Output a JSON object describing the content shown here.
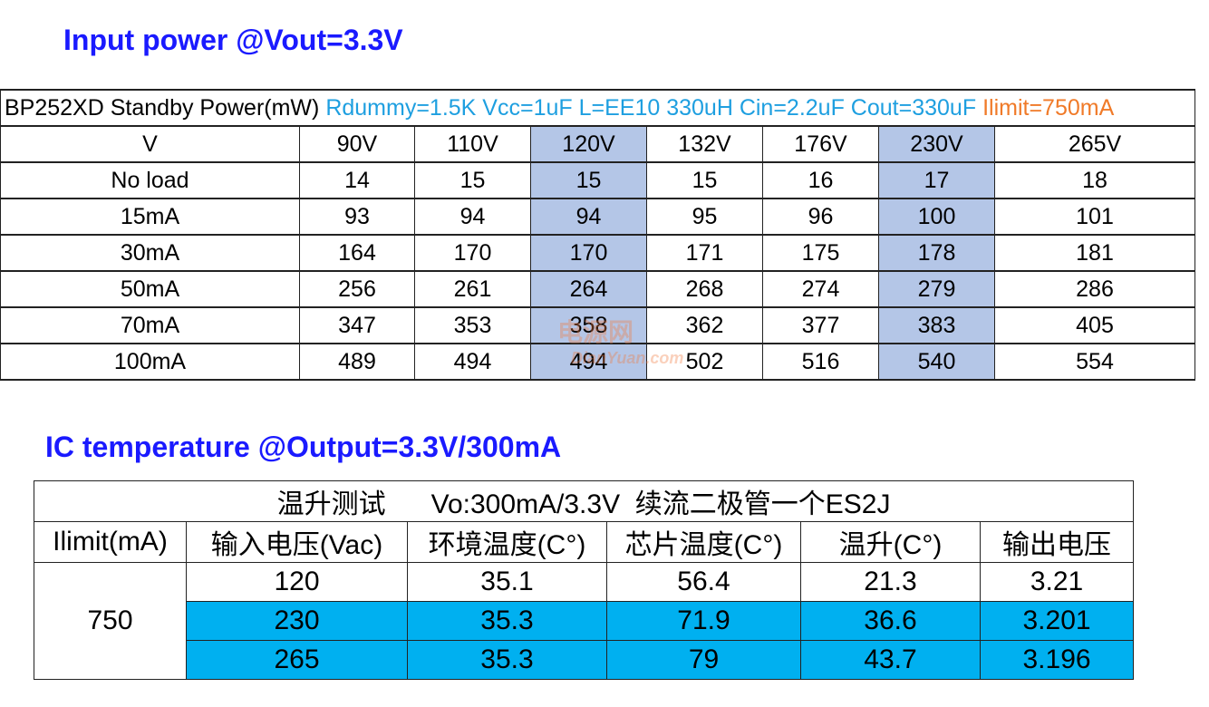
{
  "section1": {
    "title": "Input power @Vout=3.3V"
  },
  "table1": {
    "caption": [
      "BP252XD  Standby Power(mW)",
      "Rdummy=1.5K Vcc=1uF L=EE10 330uH  Cin=2.2uF Cout=330uF",
      "Ilimit=750mA"
    ],
    "header": [
      "V",
      "90V",
      "110V",
      "120V",
      "132V",
      "176V",
      "230V",
      "265V"
    ],
    "rows": [
      [
        "No load",
        "14",
        "15",
        "15",
        "15",
        "16",
        "17",
        "18"
      ],
      [
        "15mA",
        "93",
        "94",
        "94",
        "95",
        "96",
        "100",
        "101"
      ],
      [
        "30mA",
        "164",
        "170",
        "170",
        "171",
        "175",
        "178",
        "181"
      ],
      [
        "50mA",
        "256",
        "261",
        "264",
        "268",
        "274",
        "279",
        "286"
      ],
      [
        "70mA",
        "347",
        "353",
        "358",
        "362",
        "377",
        "383",
        "405"
      ],
      [
        "100mA",
        "489",
        "494",
        "494",
        "502",
        "516",
        "540",
        "554"
      ]
    ]
  },
  "section2": {
    "title": "IC temperature @Output=3.3V/300mA"
  },
  "table2": {
    "caption": "温升测试      Vo:300mA/3.3V  续流二极管一个ES2J",
    "header": [
      "Ilimit(mA)",
      "输入电压(Vac)",
      "环境温度(C°)",
      "芯片温度(C°)",
      "温升(C°)",
      "输出电压"
    ],
    "group": "750",
    "rows": [
      [
        "120",
        "35.1",
        "56.4",
        "21.3",
        "3.21"
      ],
      [
        "230",
        "35.3",
        "71.9",
        "36.6",
        "3.201"
      ],
      [
        "265",
        "35.3",
        "79",
        "43.7",
        "3.196"
      ]
    ]
  },
  "watermark": {
    "cn": "电源网",
    "en": "DianYuan.com"
  }
}
